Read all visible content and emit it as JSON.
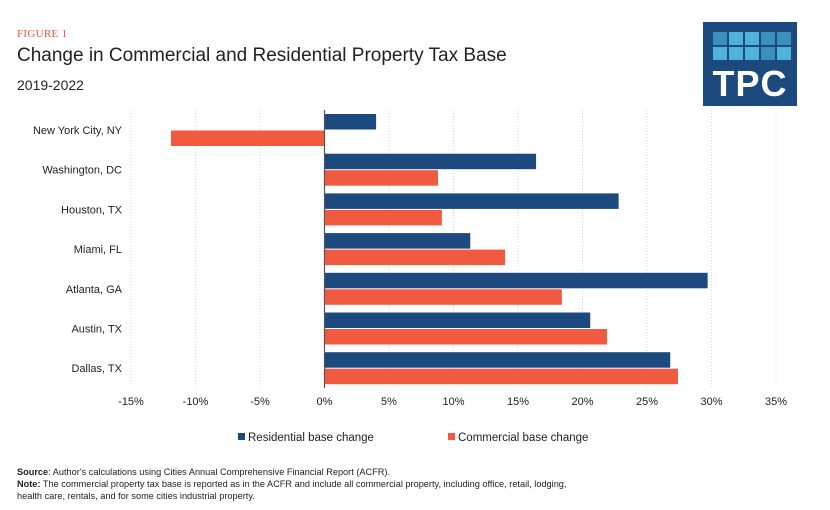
{
  "figure_label": "FIGURE 1",
  "logo": "TPC",
  "chart_data": {
    "type": "bar",
    "orientation": "horizontal",
    "title": "Change in Commercial and Residential Property Tax Base",
    "subtitle": "2019-2022",
    "categories": [
      "New York City, NY",
      "Washington, DC",
      "Houston, TX",
      "Miami, FL",
      "Atlanta, GA",
      "Austin, TX",
      "Dallas, TX"
    ],
    "series": [
      {
        "name": "Residential base change",
        "color": "#1c4a7e",
        "values": [
          4.0,
          16.4,
          22.8,
          11.3,
          29.7,
          20.6,
          26.8
        ]
      },
      {
        "name": "Commercial base change",
        "color": "#f05a40",
        "values": [
          -11.9,
          8.8,
          9.1,
          14.0,
          18.4,
          21.9,
          27.4
        ]
      }
    ],
    "xlim": [
      -15,
      35
    ],
    "xticks": [
      -15,
      -10,
      -5,
      0,
      5,
      10,
      15,
      20,
      25,
      30,
      35
    ],
    "xtick_labels": [
      "-15%",
      "-10%",
      "-5%",
      "0%",
      "5%",
      "10%",
      "15%",
      "20%",
      "25%",
      "30%",
      "35%"
    ],
    "grid": true,
    "legend": "bottom"
  },
  "footer": {
    "source_label": "Source",
    "source_text": ": Author's calculations using Cities Annual Comprehensive Financial Report (ACFR).",
    "note_label": "Note:",
    "note_text": " The commercial property tax base is reported as in the ACFR and include all commercial property, including office, retail, lodging,",
    "note_text2": "health care, rentals, and for some cities industrial property."
  }
}
